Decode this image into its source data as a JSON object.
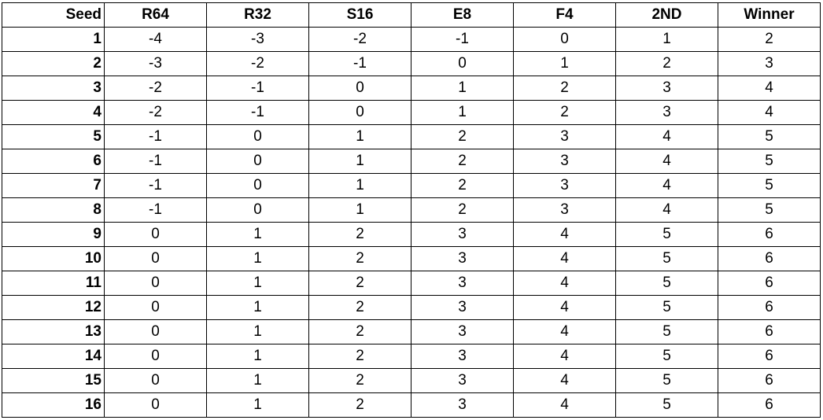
{
  "table": {
    "headers": [
      "Seed",
      "R64",
      "R32",
      "S16",
      "E8",
      "F4",
      "2ND",
      "Winner"
    ],
    "rows": [
      [
        "1",
        "-4",
        "-3",
        "-2",
        "-1",
        "0",
        "1",
        "2"
      ],
      [
        "2",
        "-3",
        "-2",
        "-1",
        "0",
        "1",
        "2",
        "3"
      ],
      [
        "3",
        "-2",
        "-1",
        "0",
        "1",
        "2",
        "3",
        "4"
      ],
      [
        "4",
        "-2",
        "-1",
        "0",
        "1",
        "2",
        "3",
        "4"
      ],
      [
        "5",
        "-1",
        "0",
        "1",
        "2",
        "3",
        "4",
        "5"
      ],
      [
        "6",
        "-1",
        "0",
        "1",
        "2",
        "3",
        "4",
        "5"
      ],
      [
        "7",
        "-1",
        "0",
        "1",
        "2",
        "3",
        "4",
        "5"
      ],
      [
        "8",
        "-1",
        "0",
        "1",
        "2",
        "3",
        "4",
        "5"
      ],
      [
        "9",
        "0",
        "1",
        "2",
        "3",
        "4",
        "5",
        "6"
      ],
      [
        "10",
        "0",
        "1",
        "2",
        "3",
        "4",
        "5",
        "6"
      ],
      [
        "11",
        "0",
        "1",
        "2",
        "3",
        "4",
        "5",
        "6"
      ],
      [
        "12",
        "0",
        "1",
        "2",
        "3",
        "4",
        "5",
        "6"
      ],
      [
        "13",
        "0",
        "1",
        "2",
        "3",
        "4",
        "5",
        "6"
      ],
      [
        "14",
        "0",
        "1",
        "2",
        "3",
        "4",
        "5",
        "6"
      ],
      [
        "15",
        "0",
        "1",
        "2",
        "3",
        "4",
        "5",
        "6"
      ],
      [
        "16",
        "0",
        "1",
        "2",
        "3",
        "4",
        "5",
        "6"
      ]
    ]
  }
}
